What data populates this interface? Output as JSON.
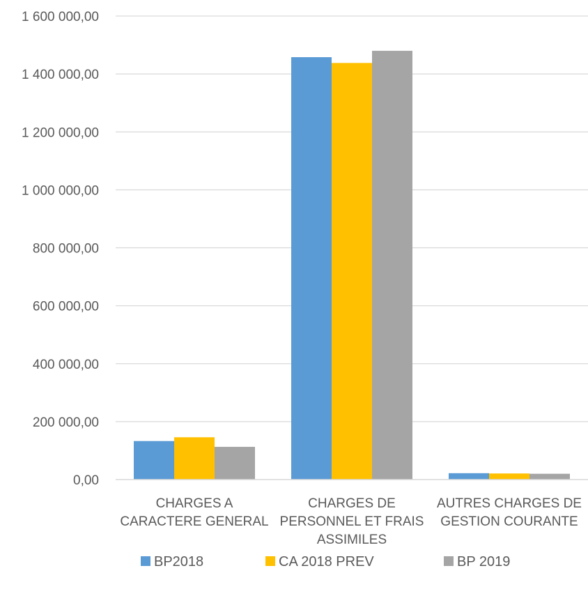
{
  "chart_data": {
    "type": "bar",
    "title": "",
    "xlabel": "",
    "ylabel": "",
    "ylim": [
      0,
      1600000
    ],
    "grid": true,
    "legend_position": "bottom",
    "categories": [
      [
        "CHARGES A",
        "CARACTERE GENERAL"
      ],
      [
        "CHARGES DE",
        "PERSONNEL ET FRAIS",
        "ASSIMILES"
      ],
      [
        "AUTRES CHARGES DE",
        "GESTION COURANTE"
      ]
    ],
    "y_ticks": [
      0,
      200000,
      400000,
      600000,
      800000,
      1000000,
      1200000,
      1400000,
      1600000
    ],
    "y_tick_labels": [
      "0,00",
      "200 000,00",
      "400 000,00",
      "600 000,00",
      "800 000,00",
      "1 000 000,00",
      "1 200 000,00",
      "1 400 000,00",
      "1 600 000,00"
    ],
    "series": [
      {
        "name": "BP2018",
        "color": "#5B9BD5",
        "values": [
          133000,
          1458000,
          22000
        ]
      },
      {
        "name": "CA 2018 PREV",
        "color": "#FFC000",
        "values": [
          146000,
          1438000,
          21000
        ]
      },
      {
        "name": "BP 2019",
        "color": "#A5A5A5",
        "values": [
          113000,
          1480000,
          20000
        ]
      }
    ]
  }
}
